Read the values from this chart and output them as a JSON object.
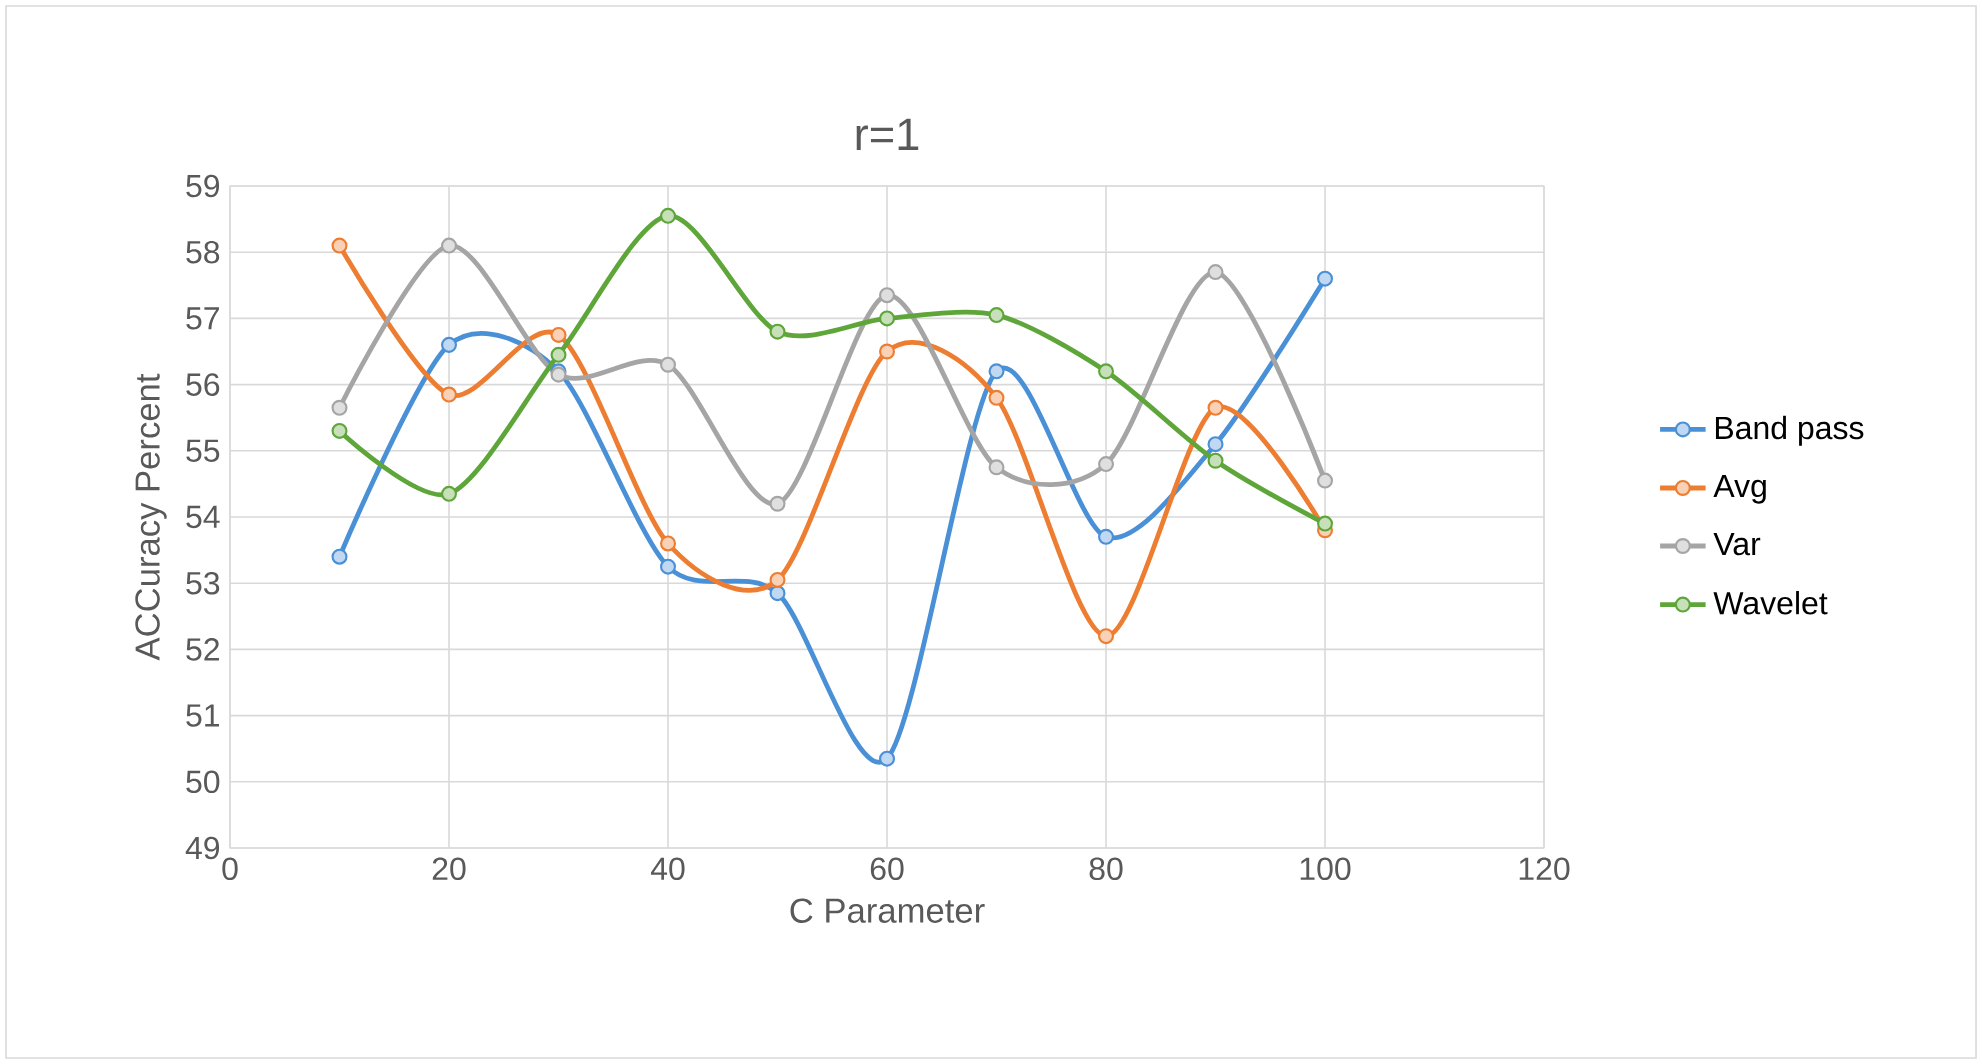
{
  "chart_data": {
    "type": "line",
    "title": "r=1",
    "xlabel": "C Parameter",
    "ylabel": "ACCuracy Percent",
    "x": [
      10,
      20,
      30,
      40,
      50,
      60,
      70,
      80,
      90,
      100
    ],
    "series": [
      {
        "name": "Band pass",
        "color": "#4a90d6",
        "values": [
          53.4,
          56.6,
          56.2,
          53.25,
          52.85,
          50.35,
          56.2,
          53.7,
          55.1,
          57.6
        ]
      },
      {
        "name": "Avg",
        "color": "#ed7d31",
        "values": [
          58.1,
          55.85,
          56.75,
          53.6,
          53.05,
          56.5,
          55.8,
          52.2,
          55.65,
          53.8
        ]
      },
      {
        "name": "Var",
        "color": "#a5a5a5",
        "values": [
          55.65,
          58.1,
          56.15,
          56.3,
          54.2,
          57.35,
          54.75,
          54.8,
          57.7,
          54.55
        ]
      },
      {
        "name": "Wavelet",
        "color": "#5ea63a",
        "values": [
          55.3,
          54.35,
          56.45,
          58.55,
          56.8,
          57.0,
          57.05,
          56.2,
          54.85,
          53.9
        ]
      }
    ],
    "xlim": [
      0,
      120
    ],
    "xticks": [
      0,
      20,
      40,
      60,
      80,
      100,
      120
    ],
    "ylim": [
      49,
      59
    ],
    "yticks": [
      49,
      50,
      51,
      52,
      53,
      54,
      55,
      56,
      57,
      58,
      59
    ],
    "grid": true,
    "legend": "right",
    "marker": "circle",
    "line_style": "solid"
  }
}
